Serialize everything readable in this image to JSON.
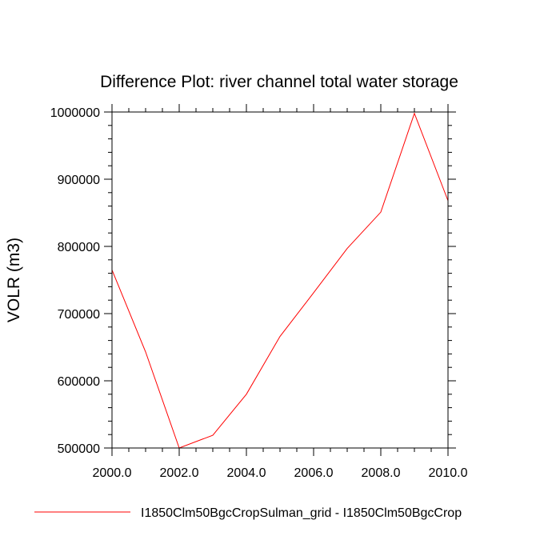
{
  "chart_data": {
    "type": "line",
    "title": "Difference Plot: river channel total water storage",
    "xlabel": "",
    "ylabel": "VOLR  (m3)",
    "xlim": [
      2000.0,
      2010.0
    ],
    "ylim": [
      500000,
      1000000
    ],
    "x_ticks": [
      "2000.0",
      "2002.0",
      "2004.0",
      "2006.0",
      "2008.0",
      "2010.0"
    ],
    "y_ticks": [
      "500000",
      "600000",
      "700000",
      "800000",
      "900000",
      "1000000"
    ],
    "grid": false,
    "legend_position": "bottom",
    "series": [
      {
        "name": "I1850Clm50BgcCropSulman_grid - I1850Clm50BgcCrop",
        "color": "#ff0000",
        "x": [
          2000,
          2001,
          2002,
          2003,
          2004,
          2005,
          2006,
          2007,
          2008,
          2009,
          2010
        ],
        "values": [
          765000,
          643000,
          500000,
          519000,
          580000,
          666000,
          731000,
          797000,
          851000,
          998000,
          868000
        ]
      }
    ]
  }
}
